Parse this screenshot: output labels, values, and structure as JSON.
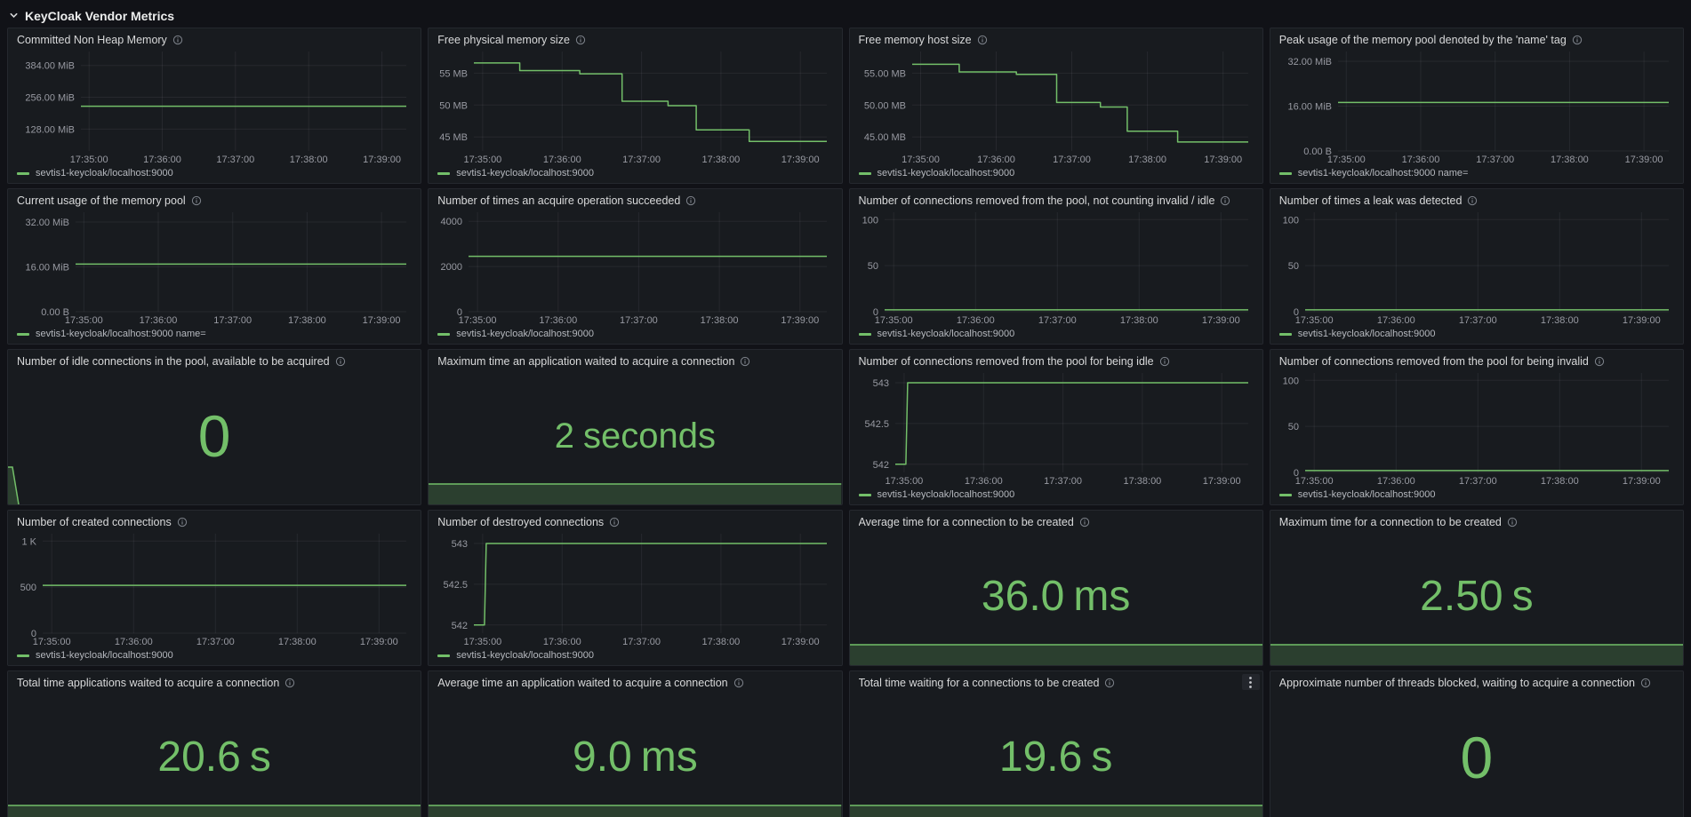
{
  "header": {
    "title": "KeyCloak Vendor Metrics"
  },
  "colors": {
    "green": "#73BF69",
    "green_fill": "rgba(115,191,105,0.22)",
    "grid": "rgba(204,204,220,0.08)",
    "axis_text": "#989aa2",
    "panel_bg": "#181b1f",
    "page_bg": "#111217",
    "panel_border": "#25282e",
    "title_text": "#d8d9da",
    "legend_text": "#b5b8be"
  },
  "icons": {
    "chevron_down": "⌄",
    "info": "ⓘ",
    "kebab": "⋮"
  },
  "time_axis": {
    "ticks": [
      "17:35:00",
      "17:36:00",
      "17:37:00",
      "17:38:00",
      "17:39:00"
    ],
    "fracs": [
      0.025,
      0.25,
      0.475,
      0.7,
      0.925
    ]
  },
  "panels": [
    {
      "type": "timeseries",
      "title": "Committed Non Heap Memory",
      "legend": "sevtis1-keycloak/localhost:9000",
      "ylim": [
        40,
        440
      ],
      "y_ticks": [
        {
          "label": "128.00 MiB",
          "v": 128
        },
        {
          "label": "256.00 MiB",
          "v": 256
        },
        {
          "label": "384.00 MiB",
          "v": 384
        }
      ],
      "points": [
        [
          0,
          220
        ],
        [
          1,
          220
        ]
      ]
    },
    {
      "type": "timeseries",
      "title": "Free physical memory size",
      "legend": "sevtis1-keycloak/localhost:9000",
      "ylim": [
        42.8,
        58.4
      ],
      "y_ticks": [
        {
          "label": "45 MB",
          "v": 45
        },
        {
          "label": "50 MB",
          "v": 50
        },
        {
          "label": "55 MB",
          "v": 55
        }
      ],
      "points": [
        [
          0,
          56.6
        ],
        [
          0.13,
          56.6
        ],
        [
          0.13,
          55.4
        ],
        [
          0.3,
          55.4
        ],
        [
          0.3,
          54.9
        ],
        [
          0.42,
          54.9
        ],
        [
          0.42,
          50.6
        ],
        [
          0.55,
          50.6
        ],
        [
          0.55,
          49.9
        ],
        [
          0.63,
          49.9
        ],
        [
          0.63,
          46.1
        ],
        [
          0.78,
          46.1
        ],
        [
          0.78,
          44.3
        ],
        [
          1,
          44.3
        ]
      ]
    },
    {
      "type": "timeseries",
      "title": "Free memory host size",
      "legend": "sevtis1-keycloak/localhost:9000",
      "ylim": [
        42.8,
        58.4
      ],
      "y_ticks": [
        {
          "label": "45.00 MB",
          "v": 45
        },
        {
          "label": "50.00 MB",
          "v": 50
        },
        {
          "label": "55.00 MB",
          "v": 55
        }
      ],
      "points": [
        [
          0,
          56.4
        ],
        [
          0.14,
          56.4
        ],
        [
          0.14,
          55.2
        ],
        [
          0.31,
          55.2
        ],
        [
          0.31,
          54.8
        ],
        [
          0.43,
          54.8
        ],
        [
          0.43,
          50.4
        ],
        [
          0.56,
          50.4
        ],
        [
          0.56,
          49.7
        ],
        [
          0.64,
          49.7
        ],
        [
          0.64,
          45.9
        ],
        [
          0.79,
          45.9
        ],
        [
          0.79,
          44.2
        ],
        [
          1,
          44.2
        ]
      ]
    },
    {
      "type": "timeseries",
      "title": "Peak usage of the memory pool denoted by the 'name' tag",
      "legend": "sevtis1-keycloak/localhost:9000 name=",
      "ylim": [
        0,
        35.5
      ],
      "y_ticks": [
        {
          "label": "0.00 B",
          "v": 0
        },
        {
          "label": "16.00 MiB",
          "v": 16
        },
        {
          "label": "32.00 MiB",
          "v": 32
        }
      ],
      "points": [
        [
          0,
          17.3
        ],
        [
          1,
          17.3
        ]
      ]
    },
    {
      "type": "timeseries",
      "title": "Current usage of the memory pool",
      "legend": "sevtis1-keycloak/localhost:9000 name=",
      "ylim": [
        0,
        35.5
      ],
      "y_ticks": [
        {
          "label": "0.00 B",
          "v": 0
        },
        {
          "label": "16.00 MiB",
          "v": 16
        },
        {
          "label": "32.00 MiB",
          "v": 32
        }
      ],
      "points": [
        [
          0,
          17
        ],
        [
          1,
          17
        ]
      ]
    },
    {
      "type": "timeseries",
      "title": "Number of times an acquire operation succeeded",
      "legend": "sevtis1-keycloak/localhost:9000",
      "ylim": [
        0,
        4400
      ],
      "y_ticks": [
        {
          "label": "0",
          "v": 0
        },
        {
          "label": "2000",
          "v": 2000
        },
        {
          "label": "4000",
          "v": 4000
        }
      ],
      "points": [
        [
          0,
          2450
        ],
        [
          1,
          2450
        ]
      ]
    },
    {
      "type": "timeseries",
      "title": "Number of connections removed from the pool, not counting invalid / idle",
      "legend": "sevtis1-keycloak/localhost:9000",
      "ylim": [
        0,
        108
      ],
      "y_ticks": [
        {
          "label": "0",
          "v": 0
        },
        {
          "label": "50",
          "v": 50
        },
        {
          "label": "100",
          "v": 100
        }
      ],
      "points": [
        [
          0,
          2
        ],
        [
          1,
          2
        ]
      ]
    },
    {
      "type": "timeseries",
      "title": "Number of times a leak was detected",
      "legend": "sevtis1-keycloak/localhost:9000",
      "ylim": [
        0,
        108
      ],
      "y_ticks": [
        {
          "label": "0",
          "v": 0
        },
        {
          "label": "50",
          "v": 50
        },
        {
          "label": "100",
          "v": 100
        }
      ],
      "points": [
        [
          0,
          2
        ],
        [
          1,
          2
        ]
      ]
    },
    {
      "type": "stat",
      "title": "Number of idle connections in the pool, available to be acquired",
      "value": "0",
      "unit": "",
      "spark": "drop"
    },
    {
      "type": "stat",
      "title": "Maximum time an application waited to acquire a connection",
      "value": "2",
      "unit": "seconds",
      "spark": "flat"
    },
    {
      "type": "timeseries",
      "title": "Number of connections removed from the pool for being idle",
      "legend": "sevtis1-keycloak/localhost:9000",
      "ylim": [
        541.9,
        543.12
      ],
      "y_ticks": [
        {
          "label": "542",
          "v": 542
        },
        {
          "label": "542.5",
          "v": 542.5
        },
        {
          "label": "543",
          "v": 543
        }
      ],
      "points": [
        [
          0,
          542
        ],
        [
          0.03,
          542
        ],
        [
          0.035,
          543
        ],
        [
          1,
          543
        ]
      ]
    },
    {
      "type": "timeseries",
      "title": "Number of connections removed from the pool for being invalid",
      "legend": "sevtis1-keycloak/localhost:9000",
      "ylim": [
        0,
        108
      ],
      "y_ticks": [
        {
          "label": "0",
          "v": 0
        },
        {
          "label": "50",
          "v": 50
        },
        {
          "label": "100",
          "v": 100
        }
      ],
      "points": [
        [
          0,
          2
        ],
        [
          1,
          2
        ]
      ]
    },
    {
      "type": "timeseries",
      "title": "Number of created connections",
      "legend": "sevtis1-keycloak/localhost:9000",
      "ylim": [
        0,
        1080
      ],
      "y_ticks": [
        {
          "label": "0",
          "v": 0
        },
        {
          "label": "500",
          "v": 500
        },
        {
          "label": "1 K",
          "v": 1000
        }
      ],
      "points": [
        [
          0,
          520
        ],
        [
          1,
          520
        ]
      ]
    },
    {
      "type": "timeseries",
      "title": "Number of destroyed connections",
      "legend": "sevtis1-keycloak/localhost:9000",
      "ylim": [
        541.9,
        543.12
      ],
      "y_ticks": [
        {
          "label": "542",
          "v": 542
        },
        {
          "label": "542.5",
          "v": 542.5
        },
        {
          "label": "543",
          "v": 543
        }
      ],
      "points": [
        [
          0,
          542
        ],
        [
          0.03,
          542
        ],
        [
          0.035,
          543
        ],
        [
          1,
          543
        ]
      ]
    },
    {
      "type": "stat",
      "title": "Average time for a connection to be created",
      "value": "36.0",
      "unit": "ms",
      "spark": "flat"
    },
    {
      "type": "stat",
      "title": "Maximum time for a connection to be created",
      "value": "2.50",
      "unit": "s",
      "spark": "flat"
    },
    {
      "type": "stat",
      "title": "Total time applications waited to acquire a connection",
      "value": "20.6",
      "unit": "s",
      "spark": "flat"
    },
    {
      "type": "stat",
      "title": "Average time an application waited to acquire a connection",
      "value": "9.0",
      "unit": "ms",
      "spark": "flat"
    },
    {
      "type": "stat",
      "title": "Total time waiting for a connections to be created",
      "value": "19.6",
      "unit": "s",
      "spark": "flat",
      "menu": true
    },
    {
      "type": "stat",
      "title": "Approximate number of threads blocked, waiting to acquire a connection",
      "value": "0",
      "unit": "",
      "spark": "none"
    }
  ]
}
